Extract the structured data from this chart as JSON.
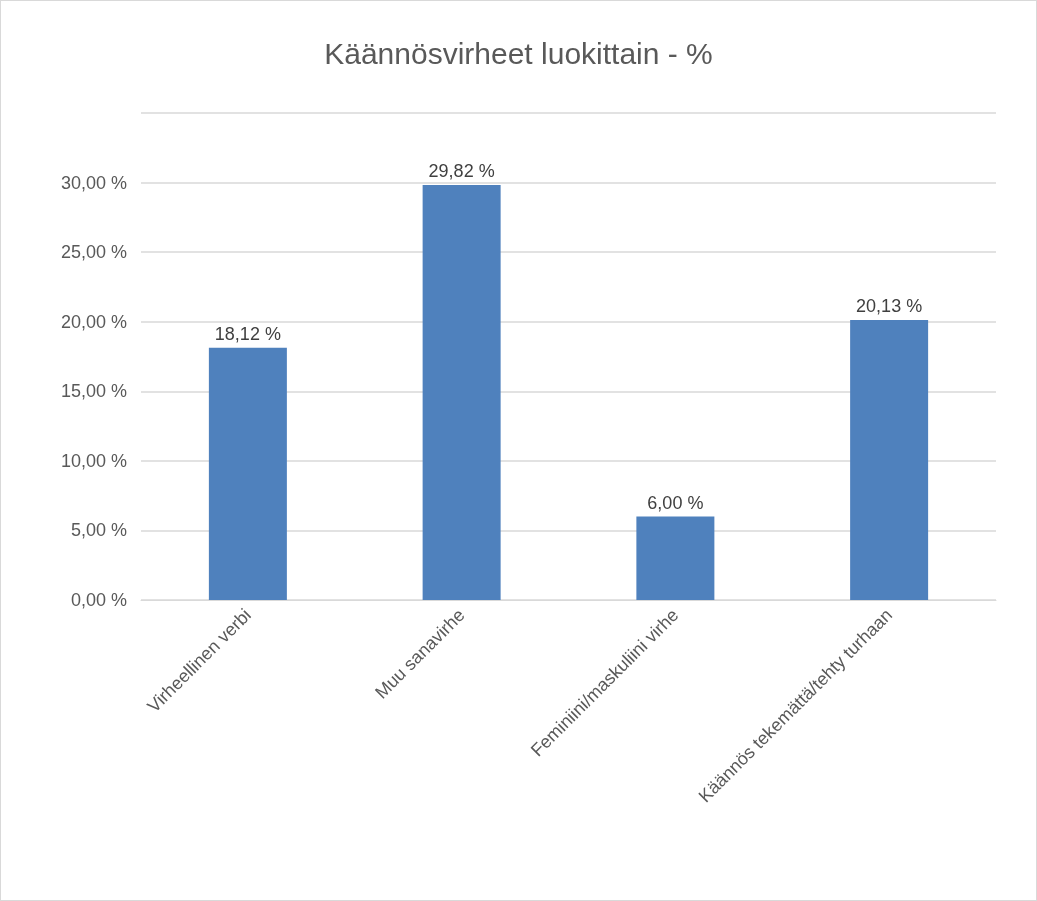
{
  "chart_data": {
    "type": "bar",
    "title": "Käännösvirheet luokittain - %",
    "categories": [
      "Virheellinen verbi",
      "Muu sanavirhe",
      "Feminiini/maskuliini virhe",
      "Käännös tekemättä/tehty turhaan"
    ],
    "values": [
      18.12,
      29.82,
      6.0,
      20.13
    ],
    "color": "#4f81bd",
    "value_labels": [
      "18,12 %",
      "29,82 %",
      "6,00 %",
      "20,13 %"
    ],
    "ylim": [
      0,
      35
    ],
    "yticks": [
      {
        "value": 0,
        "label": "0,00 %"
      },
      {
        "value": 5,
        "label": "5,00 %"
      },
      {
        "value": 10,
        "label": "10,00 %"
      },
      {
        "value": 15,
        "label": "15,00 %"
      },
      {
        "value": 20,
        "label": "20,00 %"
      },
      {
        "value": 25,
        "label": "25,00 %"
      },
      {
        "value": 30,
        "label": "30,00 %"
      },
      {
        "value": 35,
        "label": null
      }
    ],
    "grid": "y"
  }
}
